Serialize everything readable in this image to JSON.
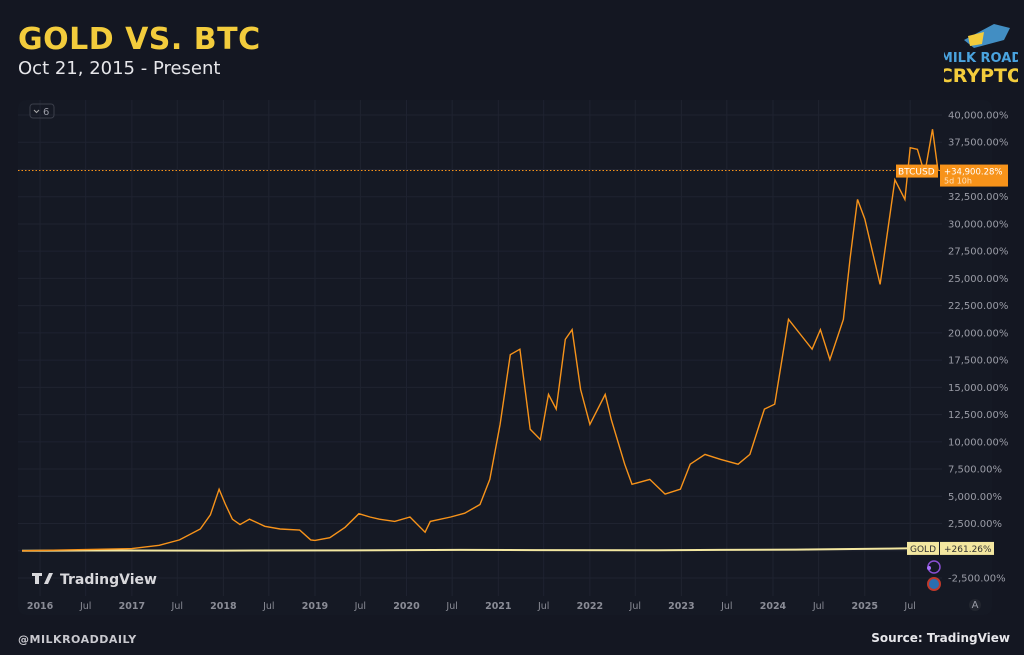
{
  "header": {
    "title": "GOLD VS. BTC",
    "subtitle": "Oct 21, 2015 - Present"
  },
  "logo": {
    "text": "MILK ROAD CRYPTO"
  },
  "footer": {
    "handle": "@MILKROADDAILY",
    "source": "Source: TradingView"
  },
  "watermark": "TradingView",
  "collapse_badge": "6",
  "colors": {
    "btc": "#f7931a",
    "gold": "#f3e7a0",
    "title": "#f3cc3c",
    "background": "#141722"
  },
  "chart_data": {
    "type": "line",
    "title": "",
    "xlabel": "",
    "ylabel": "",
    "y_unit": "%",
    "ylim": [
      -2500,
      40000
    ],
    "xlim": [
      "2015-10-21",
      "2025-10-20"
    ],
    "grid": true,
    "y_ticks": [
      -2500,
      2500,
      5000,
      7500,
      10000,
      12500,
      15000,
      17500,
      20000,
      22500,
      25000,
      27500,
      30000,
      32500,
      37500,
      40000
    ],
    "y_tick_labels": [
      "-2,500.00%",
      "2,500.00%",
      "5,000.00%",
      "7,500.00%",
      "10,000.00%",
      "12,500.00%",
      "15,000.00%",
      "17,500.00%",
      "20,000.00%",
      "22,500.00%",
      "25,000.00%",
      "27,500.00%",
      "30,000.00%",
      "32,500.00%",
      "37,500.00%",
      "40,000.00%"
    ],
    "x_ticks": [
      {
        "label": "2016",
        "date": "2016-01-01",
        "major": true
      },
      {
        "label": "Jul",
        "date": "2016-07-01",
        "major": false
      },
      {
        "label": "2017",
        "date": "2017-01-01",
        "major": true
      },
      {
        "label": "Jul",
        "date": "2017-07-01",
        "major": false
      },
      {
        "label": "2018",
        "date": "2018-01-01",
        "major": true
      },
      {
        "label": "Jul",
        "date": "2018-07-01",
        "major": false
      },
      {
        "label": "2019",
        "date": "2019-01-01",
        "major": true
      },
      {
        "label": "Jul",
        "date": "2019-07-01",
        "major": false
      },
      {
        "label": "2020",
        "date": "2020-01-01",
        "major": true
      },
      {
        "label": "Jul",
        "date": "2020-07-01",
        "major": false
      },
      {
        "label": "2021",
        "date": "2021-01-01",
        "major": true
      },
      {
        "label": "Jul",
        "date": "2021-07-01",
        "major": false
      },
      {
        "label": "2022",
        "date": "2022-01-01",
        "major": true
      },
      {
        "label": "Jul",
        "date": "2022-07-01",
        "major": false
      },
      {
        "label": "2023",
        "date": "2023-01-01",
        "major": true
      },
      {
        "label": "Jul",
        "date": "2023-07-01",
        "major": false
      },
      {
        "label": "2024",
        "date": "2024-01-01",
        "major": true
      },
      {
        "label": "Jul",
        "date": "2024-07-01",
        "major": false
      },
      {
        "label": "2025",
        "date": "2025-01-01",
        "major": true
      },
      {
        "label": "Jul",
        "date": "2025-07-01",
        "major": false
      }
    ],
    "series": [
      {
        "name": "BTCUSD",
        "color": "#f7931a",
        "last_label": "+34,900.28%",
        "countdown": "5d 10h",
        "points": [
          [
            "2015-10-21",
            0
          ],
          [
            "2017-01-01",
            200
          ],
          [
            "2017-04-20",
            500
          ],
          [
            "2017-07-10",
            1000
          ],
          [
            "2017-10-01",
            2000
          ],
          [
            "2017-11-10",
            3300
          ],
          [
            "2017-12-15",
            5650
          ],
          [
            "2018-01-08",
            4300
          ],
          [
            "2018-02-06",
            2900
          ],
          [
            "2018-03-08",
            2400
          ],
          [
            "2018-04-15",
            2900
          ],
          [
            "2018-06-15",
            2250
          ],
          [
            "2018-08-15",
            2000
          ],
          [
            "2018-11-01",
            1900
          ],
          [
            "2018-12-15",
            1000
          ],
          [
            "2019-01-01",
            950
          ],
          [
            "2019-03-01",
            1200
          ],
          [
            "2019-05-01",
            2150
          ],
          [
            "2019-06-25",
            3400
          ],
          [
            "2019-08-08",
            3100
          ],
          [
            "2019-09-15",
            2900
          ],
          [
            "2019-11-15",
            2700
          ],
          [
            "2020-01-15",
            3100
          ],
          [
            "2020-03-15",
            1700
          ],
          [
            "2020-04-05",
            2700
          ],
          [
            "2020-06-25",
            3100
          ],
          [
            "2020-08-20",
            3450
          ],
          [
            "2020-10-20",
            4250
          ],
          [
            "2020-11-28",
            6550
          ],
          [
            "2021-01-08",
            11600
          ],
          [
            "2021-02-18",
            18000
          ],
          [
            "2021-03-28",
            18500
          ],
          [
            "2021-05-08",
            11150
          ],
          [
            "2021-06-18",
            10200
          ],
          [
            "2021-07-20",
            14350
          ],
          [
            "2021-08-20",
            13000
          ],
          [
            "2021-09-25",
            19400
          ],
          [
            "2021-10-22",
            20300
          ],
          [
            "2021-11-25",
            14800
          ],
          [
            "2022-01-01",
            11600
          ],
          [
            "2022-03-03",
            14350
          ],
          [
            "2022-03-28",
            12000
          ],
          [
            "2022-05-20",
            7950
          ],
          [
            "2022-06-18",
            6100
          ],
          [
            "2022-08-28",
            6550
          ],
          [
            "2022-10-28",
            5200
          ],
          [
            "2022-12-28",
            5650
          ],
          [
            "2023-02-05",
            7950
          ],
          [
            "2023-04-05",
            8850
          ],
          [
            "2023-06-05",
            8400
          ],
          [
            "2023-08-15",
            7950
          ],
          [
            "2023-10-01",
            8850
          ],
          [
            "2023-11-28",
            13000
          ],
          [
            "2024-01-08",
            13450
          ],
          [
            "2024-03-03",
            21250
          ],
          [
            "2024-04-20",
            19850
          ],
          [
            "2024-06-05",
            18500
          ],
          [
            "2024-07-08",
            20300
          ],
          [
            "2024-08-15",
            17550
          ],
          [
            "2024-10-08",
            21250
          ],
          [
            "2024-11-03",
            26750
          ],
          [
            "2024-12-03",
            32250
          ],
          [
            "2025-01-01",
            30450
          ],
          [
            "2025-03-03",
            24450
          ],
          [
            "2025-05-01",
            34050
          ],
          [
            "2025-06-10",
            32250
          ],
          [
            "2025-07-01",
            37000
          ],
          [
            "2025-07-30",
            36850
          ],
          [
            "2025-08-28",
            34600
          ],
          [
            "2025-09-28",
            38700
          ],
          [
            "2025-10-20",
            34900
          ]
        ]
      },
      {
        "name": "GOLD",
        "color": "#f3e7a0",
        "last_label": "+261.26%",
        "points": [
          [
            "2015-10-21",
            0
          ],
          [
            "2016-07-01",
            20
          ],
          [
            "2018-01-01",
            15
          ],
          [
            "2019-06-01",
            30
          ],
          [
            "2020-08-01",
            75
          ],
          [
            "2021-06-01",
            60
          ],
          [
            "2022-10-01",
            45
          ],
          [
            "2023-06-01",
            75
          ],
          [
            "2024-04-01",
            110
          ],
          [
            "2024-10-01",
            150
          ],
          [
            "2025-04-01",
            200
          ],
          [
            "2025-10-20",
            261
          ]
        ]
      }
    ]
  }
}
